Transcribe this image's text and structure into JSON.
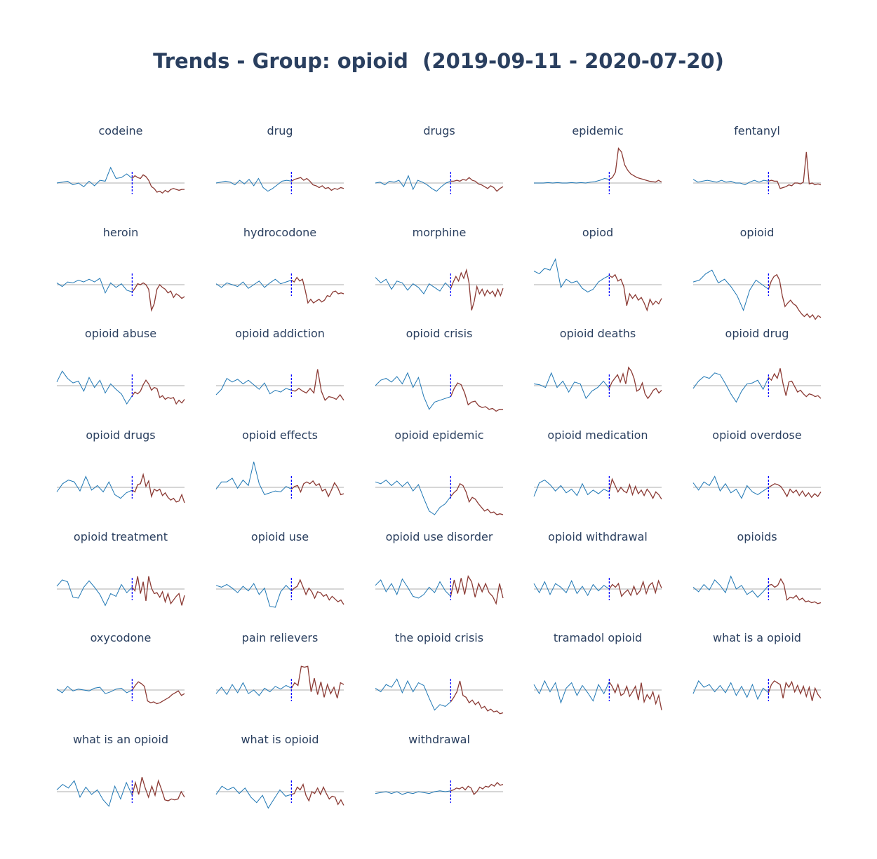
{
  "title": "Trends - Group: opioid  (2019-09-11 - 2020-07-20)",
  "colors": {
    "before": "#1f77b4",
    "after": "#8b3a34",
    "baseline": "#c8c8c8",
    "split": "#0000ff",
    "title": "#2a3f5f"
  },
  "chart_data": [
    {
      "type": "line",
      "title": "codeine",
      "split": 0.59,
      "before": [
        0,
        0.1,
        0.2,
        -0.2,
        0,
        -0.4,
        0.2,
        -0.3,
        0.3,
        0.2,
        1.7,
        0.5,
        0.6,
        1.0,
        0.5
      ],
      "after": [
        0.8,
        0.6,
        0.5,
        0.9,
        0.7,
        0.3,
        -0.4,
        -0.6,
        -1.0,
        -0.9,
        -1.1,
        -0.8,
        -1.0,
        -0.7,
        -0.6,
        -0.7,
        -0.8,
        -0.7,
        -0.7
      ]
    },
    {
      "type": "line",
      "title": "drug",
      "split": 0.59,
      "before": [
        0,
        0.1,
        0.2,
        0.1,
        -0.2,
        0.3,
        -0.1,
        0.4,
        -0.3,
        0.5,
        -0.5,
        -0.9,
        -0.6,
        -0.2,
        0.2,
        0.3,
        0.2
      ],
      "after": [
        0.4,
        0.5,
        0.6,
        0.3,
        0.5,
        0.2,
        -0.2,
        -0.3,
        -0.5,
        -0.3,
        -0.6,
        -0.5,
        -0.8,
        -0.6,
        -0.7,
        -0.5,
        -0.6
      ]
    },
    {
      "type": "line",
      "title": "drugs",
      "split": 0.59,
      "before": [
        0,
        0.1,
        -0.2,
        0.2,
        0.1,
        0.3,
        -0.4,
        0.8,
        -0.7,
        0.3,
        0.1,
        -0.2,
        -0.6,
        -0.9,
        -0.4,
        0,
        0.2
      ],
      "after": [
        0.2,
        0.3,
        0.2,
        0.4,
        0.3,
        0.6,
        0.3,
        0.2,
        -0.1,
        -0.2,
        -0.4,
        -0.6,
        -0.3,
        -0.5,
        -0.9,
        -0.6,
        -0.4
      ]
    },
    {
      "type": "line",
      "title": "epidemic",
      "split": 0.59,
      "before": [
        0,
        0,
        0,
        0.05,
        0,
        0.05,
        0,
        0,
        0.05,
        0,
        0.05,
        0,
        0.1,
        0.15,
        0.3,
        0.5,
        0.4
      ],
      "after": [
        0.6,
        1.2,
        3.8,
        3.4,
        2.0,
        1.4,
        1.0,
        0.8,
        0.6,
        0.5,
        0.4,
        0.3,
        0.2,
        0.15,
        0.1,
        0.3,
        0.1
      ]
    },
    {
      "type": "line",
      "title": "fentanyl",
      "split": 0.59,
      "before": [
        0.4,
        0.1,
        0.2,
        0.3,
        0.2,
        0.1,
        0.3,
        0.1,
        0.2,
        0,
        0,
        -0.2,
        0.1,
        0.3,
        0.1,
        0.3,
        0.2
      ],
      "after": [
        0.3,
        0.2,
        0.2,
        -0.6,
        -0.5,
        -0.4,
        -0.2,
        -0.3,
        0,
        0,
        -0.1,
        0.1,
        3.4,
        -0.1,
        0,
        -0.2,
        -0.1,
        -0.2
      ]
    },
    {
      "type": "line",
      "title": "heroin",
      "split": 0.59,
      "before": [
        0.2,
        -0.2,
        0.3,
        0.2,
        0.5,
        0.3,
        0.6,
        0.3,
        0.7,
        -0.9,
        0.2,
        -0.3,
        0.1,
        -0.6,
        -0.8
      ],
      "after": [
        -0.4,
        0.1,
        0,
        0.2,
        0,
        -0.5,
        -2.8,
        -2.1,
        -0.5,
        0,
        -0.3,
        -0.5,
        -0.9,
        -0.7,
        -1.4,
        -1.0,
        -1.2,
        -1.5,
        -1.3
      ]
    },
    {
      "type": "line",
      "title": "hydrocodone",
      "split": 0.59,
      "before": [
        0.1,
        -0.3,
        0.2,
        0,
        -0.2,
        0.3,
        -0.4,
        0,
        0.4,
        -0.3,
        0.2,
        0.6,
        0.1,
        0.3,
        0.5
      ],
      "after": [
        0.3,
        0.8,
        0.4,
        0.6,
        -0.6,
        -2.0,
        -1.6,
        -2.0,
        -1.8,
        -1.6,
        -1.9,
        -1.7,
        -1.2,
        -1.3,
        -0.8,
        -0.7,
        -1.0,
        -0.9,
        -1.0
      ]
    },
    {
      "type": "line",
      "title": "morphine",
      "split": 0.59,
      "before": [
        0.8,
        0.2,
        0.6,
        -0.5,
        0.4,
        0.2,
        -0.6,
        0.1,
        -0.3,
        -1.0,
        0.1,
        -0.3,
        -0.7,
        0.2,
        -0.4
      ],
      "after": [
        0.3,
        0.9,
        0.4,
        1.3,
        0.7,
        1.6,
        0.2,
        -2.8,
        -1.8,
        -0.2,
        -1.0,
        -0.5,
        -1.2,
        -0.6,
        -1.0,
        -0.7,
        -1.3,
        -0.5,
        -1.2,
        -0.4
      ]
    },
    {
      "type": "line",
      "title": "opiod",
      "split": 0.59,
      "before": [
        1.5,
        1.2,
        1.8,
        1.6,
        2.8,
        -0.3,
        0.6,
        0.2,
        0.4,
        -0.4,
        -0.8,
        -0.5,
        0.3,
        0.7,
        1.0
      ],
      "after": [
        0.8,
        1.1,
        0.4,
        0.6,
        -0.2,
        -2.3,
        -1.0,
        -1.5,
        -1.1,
        -1.7,
        -1.4,
        -2.0,
        -2.8,
        -1.6,
        -2.2,
        -1.8,
        -2.1,
        -1.5
      ]
    },
    {
      "type": "line",
      "title": "opioid",
      "split": 0.59,
      "before": [
        0.3,
        0.5,
        1.2,
        1.6,
        0.2,
        0.6,
        -0.2,
        -1.2,
        -2.8,
        -0.6,
        0.5,
        0,
        -0.5
      ],
      "after": [
        0.4,
        0.9,
        1.1,
        0.5,
        -1.2,
        -2.4,
        -2.0,
        -1.7,
        -2.1,
        -2.3,
        -2.8,
        -3.2,
        -3.5,
        -3.2,
        -3.6,
        -3.3,
        -3.8,
        -3.4,
        -3.6
      ]
    },
    {
      "type": "line",
      "title": "opioid abuse",
      "split": 0.59,
      "before": [
        0.4,
        1.6,
        0.8,
        0.3,
        0.5,
        -0.6,
        0.9,
        -0.2,
        0.6,
        -0.8,
        0.2,
        -0.4,
        -0.9,
        -2.0,
        -1.1
      ],
      "after": [
        -0.7,
        -0.9,
        -0.6,
        0.1,
        0.6,
        0.2,
        -0.5,
        -0.2,
        -0.3,
        -1.3,
        -1.1,
        -1.5,
        -1.3,
        -1.4,
        -1.3,
        -2.0,
        -1.6,
        -1.9,
        -1.5
      ]
    },
    {
      "type": "line",
      "title": "opioid addiction",
      "split": 0.59,
      "before": [
        -1.0,
        -0.4,
        0.8,
        0.4,
        0.7,
        0.2,
        0.6,
        0.1,
        -0.4,
        0.3,
        -0.9,
        -0.5,
        -0.7,
        -0.3,
        -0.5
      ],
      "after": [
        -0.6,
        -0.3,
        -0.6,
        -0.8,
        -0.3,
        -0.8,
        1.8,
        -0.6,
        -1.6,
        -1.2,
        -1.3,
        -1.5,
        -1.0,
        -1.6
      ]
    },
    {
      "type": "line",
      "title": "opioid crisis",
      "split": 0.59,
      "before": [
        0,
        0.6,
        0.8,
        0.4,
        1.0,
        0.2,
        1.4,
        -0.2,
        0.9,
        -1.2,
        -2.6,
        -1.8,
        -1.6,
        -1.4,
        -1.2
      ],
      "after": [
        -0.3,
        0.3,
        0.1,
        -0.8,
        -2.1,
        -1.8,
        -1.7,
        -2.2,
        -2.4,
        -2.3,
        -2.6,
        -2.5,
        -2.8,
        -2.6,
        -2.6
      ]
    },
    {
      "type": "line",
      "title": "opioid deaths",
      "split": 0.59,
      "before": [
        0.2,
        0.1,
        -0.2,
        1.4,
        -0.2,
        0.5,
        -0.7,
        0.4,
        0.2,
        -1.4,
        -0.6,
        -0.2,
        0.5,
        -0.3
      ],
      "after": [
        0.4,
        0.8,
        1.2,
        0.4,
        1.3,
        0.2,
        2.0,
        1.6,
        0.8,
        -0.6,
        -0.4,
        0.3,
        -0.9,
        -1.4,
        -1.0,
        -0.5,
        -0.3,
        -0.8,
        -0.5
      ]
    },
    {
      "type": "line",
      "title": "opioid drug",
      "split": 0.59,
      "before": [
        -0.3,
        0.5,
        1.0,
        0.8,
        1.4,
        1.2,
        0.2,
        -0.9,
        -1.8,
        -0.6,
        0.2,
        0.3,
        0.6,
        -0.4,
        0.9
      ],
      "after": [
        0.6,
        1.3,
        0.8,
        1.9,
        0.2,
        -1.1,
        0.4,
        0.5,
        -0.1,
        -0.7,
        -0.5,
        -0.9,
        -1.2,
        -0.9,
        -1.0,
        -1.2,
        -1.1,
        -1.4
      ]
    },
    {
      "type": "line",
      "title": "opioid drugs",
      "split": 0.59,
      "before": [
        -0.5,
        0.4,
        0.8,
        0.6,
        -0.4,
        1.2,
        -0.3,
        0.2,
        -0.5,
        0.6,
        -0.8,
        -1.2,
        -0.6,
        -0.3
      ],
      "after": [
        -0.5,
        0.3,
        0.4,
        1.4,
        0.1,
        0.7,
        -1.0,
        -0.2,
        -0.4,
        -0.2,
        -0.9,
        -0.6,
        -1.1,
        -1.4,
        -1.2,
        -1.6,
        -1.5,
        -0.8,
        -1.7
      ]
    },
    {
      "type": "line",
      "title": "opioid effects",
      "split": 0.59,
      "before": [
        -0.2,
        0.6,
        0.6,
        1.0,
        -0.1,
        0.8,
        0.2,
        2.8,
        0.4,
        -0.8,
        -0.6,
        -0.4,
        -0.5,
        0.1,
        -0.2
      ],
      "after": [
        0.1,
        0.2,
        -0.5,
        0.4,
        0.6,
        0.4,
        0.7,
        0.2,
        0.4,
        -0.4,
        -0.2,
        -1.0,
        -0.3,
        0.5,
        0,
        -0.8,
        -0.7
      ]
    },
    {
      "type": "line",
      "title": "opioid epidemic",
      "split": 0.59,
      "before": [
        0.6,
        0.4,
        0.8,
        0.2,
        0.7,
        0.1,
        0.6,
        -0.4,
        0.3,
        -1.2,
        -2.6,
        -3.0,
        -2.2,
        -1.8,
        -1.0
      ],
      "after": [
        -0.6,
        -0.3,
        0.4,
        0.2,
        -0.5,
        -1.6,
        -1.1,
        -1.3,
        -1.8,
        -2.2,
        -2.6,
        -2.4,
        -2.8,
        -2.7,
        -3.0,
        -2.9,
        -3.0
      ]
    },
    {
      "type": "line",
      "title": "opioid medication",
      "split": 0.59,
      "before": [
        -1.0,
        0.5,
        0.8,
        0.3,
        -0.4,
        0.2,
        -0.6,
        -0.2,
        -0.9,
        0.4,
        -0.8,
        -0.3,
        -0.7,
        -0.2,
        -0.5
      ],
      "after": [
        0.9,
        0.2,
        -0.5,
        0.0,
        -0.4,
        -0.6,
        0.3,
        -0.8,
        0.1,
        -0.7,
        -0.3,
        -0.9,
        -0.2,
        -0.6,
        -1.2,
        -0.5,
        -0.8,
        -1.3
      ]
    },
    {
      "type": "line",
      "title": "opioid overdose",
      "split": 0.59,
      "before": [
        0.5,
        -0.3,
        0.6,
        0.2,
        1.2,
        -0.4,
        0.4,
        -0.6,
        -0.2,
        -1.2,
        0.2,
        -0.5,
        -0.8,
        -0.4,
        0
      ],
      "after": [
        0.2,
        0.4,
        0.3,
        0.1,
        -0.4,
        -1.0,
        -0.2,
        -0.6,
        -0.3,
        -0.9,
        -0.4,
        -1.0,
        -0.6,
        -1.1,
        -0.7,
        -1.0,
        -0.5
      ]
    },
    {
      "type": "line",
      "title": "opioid treatment",
      "split": 0.59,
      "before": [
        0.3,
        1.0,
        0.8,
        -0.9,
        -1.0,
        0.2,
        0.9,
        0.2,
        -0.6,
        -1.8,
        -0.5,
        -0.8,
        0.5,
        -0.4,
        0.2
      ],
      "after": [
        -0.2,
        1.4,
        -0.5,
        0.8,
        -1.3,
        1.4,
        0.1,
        -0.5,
        -0.4,
        -0.9,
        -0.3,
        -1.4,
        -0.5,
        -1.6,
        -1.2,
        -0.8,
        -0.5,
        -1.8,
        -0.7
      ]
    },
    {
      "type": "line",
      "title": "opioid use",
      "split": 0.59,
      "before": [
        0.4,
        0.2,
        0.5,
        0.1,
        -0.4,
        0.3,
        -0.2,
        0.6,
        -0.6,
        0.1,
        -1.9,
        -2.0,
        -0.3,
        0.4,
        -0.2
      ],
      "after": [
        0.1,
        0.3,
        1.0,
        0.2,
        -0.6,
        0.1,
        -0.3,
        -1.0,
        -0.3,
        -0.4,
        -0.8,
        -0.6,
        -1.2,
        -0.8,
        -1.1,
        -1.4,
        -1.2,
        -1.7
      ]
    },
    {
      "type": "line",
      "title": "opioid use disorder",
      "split": 0.59,
      "before": [
        0.4,
        1.0,
        -0.3,
        0.6,
        -0.6,
        1.1,
        0.2,
        -0.8,
        -1.0,
        -0.6,
        0.2,
        -0.4,
        0.8,
        -0.2,
        -0.8
      ],
      "after": [
        1.0,
        -0.5,
        1.2,
        -0.6,
        1.4,
        0.8,
        -0.9,
        0.6,
        -0.3,
        0.6,
        -0.4,
        -0.8,
        -1.6,
        0.6,
        -1.0
      ]
    },
    {
      "type": "line",
      "title": "opioid withdrawal",
      "split": 0.59,
      "before": [
        0.6,
        -0.4,
        0.8,
        -0.6,
        0.6,
        0.2,
        -0.4,
        0.9,
        -0.5,
        0.3,
        -0.7,
        0.5,
        -0.2,
        0.4,
        0
      ],
      "after": [
        0.5,
        0.2,
        0.6,
        -0.8,
        -0.4,
        -0.1,
        -0.7,
        0.3,
        -0.6,
        -0.2,
        0.8,
        -0.5,
        0.4,
        0.7,
        -0.4,
        0.9,
        0.1
      ]
    },
    {
      "type": "line",
      "title": "opioids",
      "split": 0.59,
      "before": [
        0.2,
        -0.3,
        0.5,
        -0.1,
        1.0,
        0.4,
        -0.4,
        1.4,
        0,
        0.4,
        -0.6,
        -0.2,
        -0.9,
        -0.3,
        0.4
      ],
      "after": [
        0.5,
        0.2,
        0.4,
        1.1,
        0.5,
        -1.2,
        -0.9,
        -1.0,
        -0.7,
        -1.2,
        -1.0,
        -1.4,
        -1.3,
        -1.5,
        -1.4,
        -1.6,
        -1.5
      ]
    },
    {
      "type": "line",
      "title": "oxycodone",
      "split": 0.59,
      "before": [
        0.1,
        -0.3,
        0.4,
        -0.1,
        0.1,
        0,
        -0.1,
        0.2,
        0.3,
        -0.4,
        -0.2,
        0.1,
        0.2,
        -0.3,
        0
      ],
      "after": [
        0.5,
        0.9,
        0.7,
        0.4,
        -1.2,
        -1.4,
        -1.3,
        -1.5,
        -1.4,
        -1.2,
        -1.0,
        -0.8,
        -0.5,
        -0.3,
        -0.1,
        -0.6,
        -0.4
      ]
    },
    {
      "type": "line",
      "title": "pain relievers",
      "split": 0.59,
      "before": [
        -0.4,
        0.3,
        -0.5,
        0.6,
        -0.3,
        0.8,
        -0.4,
        0,
        -0.6,
        0.2,
        -0.2,
        0.4,
        0.1,
        0.5,
        0.2
      ],
      "after": [
        0.8,
        0.5,
        2.6,
        2.5,
        2.6,
        -0.2,
        1.3,
        -0.5,
        0.9,
        -0.8,
        0.6,
        -0.4,
        0.3,
        -0.9,
        0.8,
        0.6
      ]
    },
    {
      "type": "line",
      "title": "the opioid crisis",
      "split": 0.59,
      "before": [
        0.2,
        -0.2,
        0.6,
        0.3,
        1.2,
        -0.3,
        1.0,
        -0.2,
        0.8,
        0.5,
        -0.9,
        -2.2,
        -1.6,
        -1.8,
        -1.3
      ],
      "after": [
        -0.8,
        -0.2,
        1.0,
        -0.6,
        -0.8,
        -1.4,
        -1.1,
        -1.6,
        -1.3,
        -2.0,
        -1.8,
        -2.3,
        -2.1,
        -2.4,
        -2.3,
        -2.6,
        -2.5
      ]
    },
    {
      "type": "line",
      "title": "tramadol opioid",
      "split": 0.59,
      "before": [
        0.6,
        -0.4,
        1.0,
        -0.2,
        0.8,
        -1.4,
        0.2,
        0.8,
        -0.6,
        0.5,
        -0.3,
        -1.2,
        0.6,
        -0.4,
        0.9
      ],
      "after": [
        0.4,
        -0.3,
        0.6,
        -0.6,
        -0.4,
        0.4,
        -0.7,
        -0.2,
        0.4,
        -1.1,
        0.8,
        -1.3,
        -0.5,
        -1.0,
        -0.2,
        -1.5,
        -0.6,
        -2.2
      ]
    },
    {
      "type": "line",
      "title": "what is a opioid",
      "split": 0.59,
      "before": [
        -0.4,
        1.0,
        0.3,
        0.6,
        -0.2,
        0.5,
        -0.3,
        0.8,
        -0.6,
        0.4,
        -0.8,
        0.6,
        -1.0,
        0.2,
        -0.3
      ],
      "after": [
        0.6,
        1.0,
        0.8,
        0.6,
        -0.9,
        0.8,
        0.3,
        0.9,
        -0.2,
        0.5,
        -0.4,
        0.4,
        -0.7,
        0.3,
        -1.2,
        0.2,
        -0.5,
        -0.9
      ]
    },
    {
      "type": "line",
      "title": "what is an opioid",
      "split": 0.59,
      "before": [
        0.2,
        0.8,
        0.4,
        1.2,
        -0.6,
        0.5,
        -0.3,
        0.2,
        -0.9,
        -1.6,
        0.6,
        -0.8,
        1.0,
        -0.4
      ],
      "after": [
        1.0,
        -0.3,
        1.6,
        0.4,
        -0.6,
        0.6,
        -0.4,
        1.2,
        0.2,
        -0.9,
        -1.0,
        -0.8,
        -0.9,
        -0.8,
        0,
        -0.6
      ]
    },
    {
      "type": "line",
      "title": "what is opioid",
      "split": 0.59,
      "before": [
        -0.3,
        0.6,
        0.2,
        0.5,
        -0.2,
        0.4,
        -0.6,
        -1.2,
        -0.4,
        -1.8,
        -0.8,
        0.2,
        -0.5,
        -0.3
      ],
      "after": [
        -0.2,
        0.5,
        0.2,
        0.8,
        -0.4,
        -1.0,
        0,
        -0.2,
        0.4,
        -0.3,
        0.5,
        -0.2,
        -0.8,
        -0.5,
        -0.6,
        -1.4,
        -0.9,
        -1.5
      ]
    },
    {
      "type": "line",
      "title": "withdrawal",
      "split": 0.59,
      "before": [
        -0.2,
        -0.1,
        0,
        -0.2,
        0,
        -0.3,
        -0.1,
        -0.2,
        0,
        -0.1,
        -0.2,
        0,
        0.1,
        0,
        0.1
      ],
      "after": [
        0.2,
        0.4,
        0.3,
        0.5,
        0.2,
        0.6,
        0.4,
        -0.3,
        0,
        0.5,
        0.3,
        0.6,
        0.5,
        0.8,
        0.6,
        1.0,
        0.7,
        0.8
      ]
    }
  ]
}
